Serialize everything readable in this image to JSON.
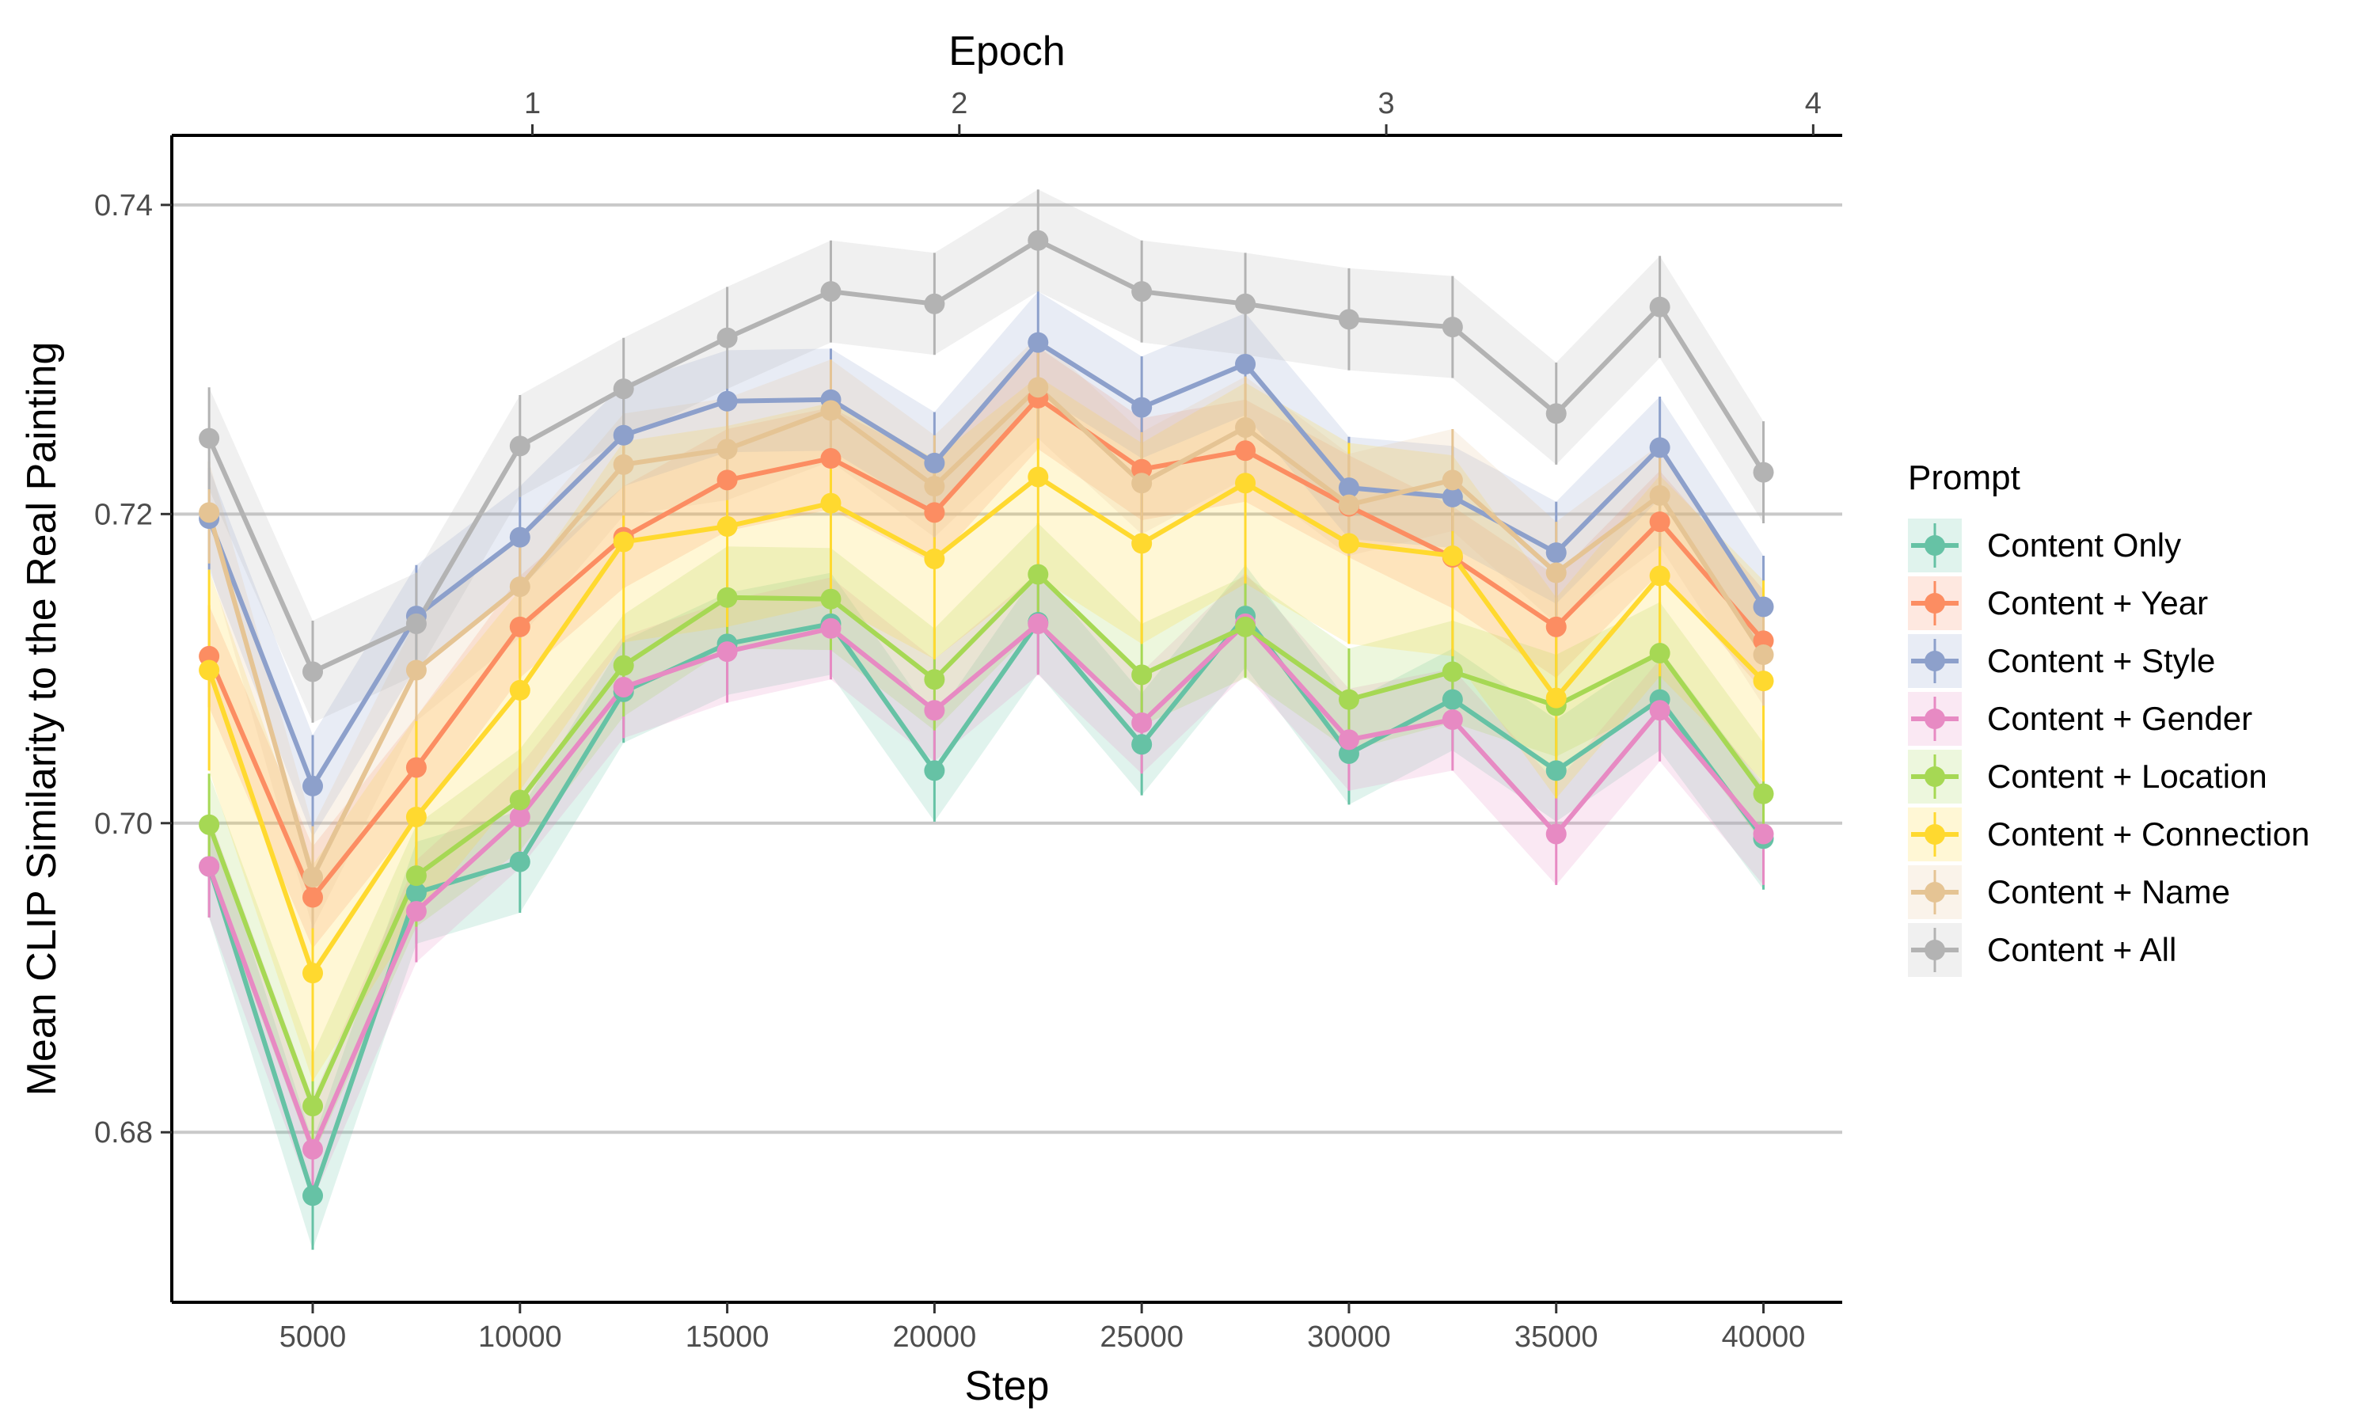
{
  "chart_data": {
    "type": "line",
    "title": "",
    "xlabel": "Step",
    "ylabel": "Mean CLIP Similarity to the Real Painting",
    "secondary_xlabel": "Epoch",
    "x": [
      2500,
      5000,
      7500,
      10000,
      12500,
      15000,
      17500,
      20000,
      22500,
      25000,
      27500,
      30000,
      32500,
      35000,
      37500,
      40000
    ],
    "x_ticks": [
      5000,
      10000,
      15000,
      20000,
      25000,
      30000,
      35000,
      40000
    ],
    "x_tick_labels": [
      "5000",
      "10000",
      "15000",
      "20000",
      "25000",
      "30000",
      "35000",
      "40000"
    ],
    "secondary_x_ticks": [
      1,
      2,
      3,
      4
    ],
    "secondary_x_tick_labels": [
      "1",
      "2",
      "3",
      "4"
    ],
    "steps_per_epoch": 10300,
    "xlim": [
      1600,
      41900
    ],
    "ylim": [
      0.669,
      0.7445
    ],
    "y_ticks": [
      0.68,
      0.7,
      0.72,
      0.74
    ],
    "y_tick_labels": [
      "0.68",
      "0.70",
      "0.72",
      "0.74"
    ],
    "grid": "horizontal major gridlines",
    "legend": {
      "title": "Prompt",
      "position": "right"
    },
    "series": [
      {
        "name": "Content Only",
        "color": "#66c2a5",
        "values": [
          0.6972,
          0.6759,
          0.6955,
          0.6975,
          0.7085,
          0.7116,
          0.7129,
          0.7034,
          0.713,
          0.7051,
          0.7134,
          0.7045,
          0.708,
          0.7034,
          0.708,
          0.699
        ],
        "error": [
          0.0033,
          0.0035,
          0.0033,
          0.0033,
          0.0033,
          0.0033,
          0.0033,
          0.0033,
          0.0033,
          0.0033,
          0.0033,
          0.0033,
          0.0033,
          0.0033,
          0.0033,
          0.0033
        ]
      },
      {
        "name": "Content + Year",
        "color": "#fc8d62",
        "values": [
          0.7108,
          0.6952,
          0.7036,
          0.7127,
          0.7185,
          0.7222,
          0.7236,
          0.7201,
          0.7275,
          0.7229,
          0.7241,
          0.7205,
          0.7172,
          0.7127,
          0.7195,
          0.7118
        ],
        "error": [
          0.0033,
          0.0033,
          0.0033,
          0.0033,
          0.0033,
          0.0033,
          0.0033,
          0.0033,
          0.0033,
          0.0033,
          0.0033,
          0.0033,
          0.0033,
          0.0033,
          0.0033,
          0.0033
        ]
      },
      {
        "name": "Content + Style",
        "color": "#8da0cb",
        "values": [
          0.7197,
          0.7024,
          0.7134,
          0.7185,
          0.7251,
          0.7273,
          0.7274,
          0.7233,
          0.7311,
          0.7269,
          0.7297,
          0.7217,
          0.7211,
          0.7175,
          0.7243,
          0.714
        ],
        "error": [
          0.0033,
          0.0033,
          0.0033,
          0.0033,
          0.0033,
          0.0033,
          0.0033,
          0.0033,
          0.0033,
          0.0033,
          0.0033,
          0.0033,
          0.0033,
          0.0033,
          0.0033,
          0.0033
        ]
      },
      {
        "name": "Content + Gender",
        "color": "#e78ac3",
        "values": [
          0.6972,
          0.6789,
          0.6943,
          0.7004,
          0.7088,
          0.7111,
          0.7126,
          0.7073,
          0.7129,
          0.7065,
          0.7129,
          0.7054,
          0.7067,
          0.6993,
          0.7073,
          0.6993
        ],
        "error": [
          0.0033,
          0.0033,
          0.0033,
          0.0033,
          0.0033,
          0.0033,
          0.0033,
          0.0033,
          0.0033,
          0.0033,
          0.0033,
          0.0033,
          0.0033,
          0.0033,
          0.0033,
          0.0033
        ]
      },
      {
        "name": "Content + Location",
        "color": "#a6d854",
        "values": [
          0.6999,
          0.6817,
          0.6966,
          0.7015,
          0.7102,
          0.7146,
          0.7145,
          0.7093,
          0.7161,
          0.7096,
          0.7127,
          0.708,
          0.7098,
          0.7076,
          0.711,
          0.7019
        ],
        "error": [
          0.0033,
          0.0033,
          0.0033,
          0.0033,
          0.0033,
          0.0033,
          0.0033,
          0.0033,
          0.0033,
          0.0033,
          0.0033,
          0.0033,
          0.0033,
          0.0033,
          0.0033,
          0.0033
        ]
      },
      {
        "name": "Content + Connection",
        "color": "#ffd92f",
        "values": [
          0.7099,
          0.6903,
          0.7004,
          0.7086,
          0.7182,
          0.7192,
          0.7207,
          0.7171,
          0.7224,
          0.7181,
          0.722,
          0.7181,
          0.7173,
          0.7081,
          0.716,
          0.7092
        ],
        "error": [
          0.0065,
          0.007,
          0.0065,
          0.0065,
          0.0065,
          0.0065,
          0.0065,
          0.0065,
          0.0065,
          0.0065,
          0.0065,
          0.0065,
          0.0065,
          0.0065,
          0.0065,
          0.0065
        ]
      },
      {
        "name": "Content + Name",
        "color": "#e5c494",
        "values": [
          0.7201,
          0.6965,
          0.7099,
          0.7153,
          0.7232,
          0.7242,
          0.7267,
          0.7218,
          0.7282,
          0.722,
          0.7256,
          0.7206,
          0.7222,
          0.7162,
          0.7212,
          0.7109
        ],
        "error": [
          0.0033,
          0.0033,
          0.0033,
          0.0033,
          0.0033,
          0.0033,
          0.0033,
          0.0033,
          0.0033,
          0.0033,
          0.0033,
          0.0033,
          0.0033,
          0.0033,
          0.0033,
          0.0033
        ]
      },
      {
        "name": "Content + All",
        "color": "#b3b3b3",
        "values": [
          0.7249,
          0.7098,
          0.7129,
          0.7244,
          0.7281,
          0.7314,
          0.7344,
          0.7336,
          0.7377,
          0.7344,
          0.7336,
          0.7326,
          0.7321,
          0.7265,
          0.7334,
          0.7227
        ],
        "error": [
          0.0033,
          0.0033,
          0.0033,
          0.0033,
          0.0033,
          0.0033,
          0.0033,
          0.0033,
          0.0033,
          0.0033,
          0.0033,
          0.0033,
          0.0033,
          0.0033,
          0.0033,
          0.0033
        ]
      }
    ]
  }
}
